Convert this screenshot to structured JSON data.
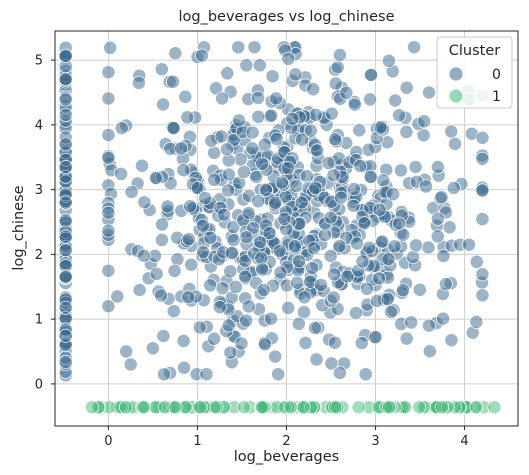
{
  "chart_data": {
    "type": "scatter",
    "title": "log_beverages vs log_chinese",
    "xlabel": "log_beverages",
    "ylabel": "log_chinese",
    "xlim": [
      -0.6,
      4.6
    ],
    "ylim": [
      -0.65,
      5.45
    ],
    "xticks": [
      0,
      1,
      2,
      3,
      4
    ],
    "yticks": [
      0,
      1,
      2,
      3,
      4,
      5
    ],
    "grid": true,
    "legend": {
      "title": "Cluster",
      "placement": "top-right"
    },
    "series": [
      {
        "name": "0",
        "color": "#3b6a8f",
        "groups": [
          {
            "shape": "vertical-strip",
            "x": -0.48,
            "y_min": 0.1,
            "y_max": 5.2,
            "count": 120
          },
          {
            "shape": "cloud",
            "x_min": 0.0,
            "x_max": 4.2,
            "y_min": 0.15,
            "y_max": 5.2,
            "count": 700
          }
        ],
        "points": [
          [
            0.02,
            5.19
          ],
          [
            1.0,
            5.05
          ],
          [
            1.05,
            5.07
          ],
          [
            2.6,
            5.08
          ],
          [
            2.02,
            5.02
          ],
          [
            3.15,
            4.99
          ],
          [
            0.6,
            4.86
          ],
          [
            1.55,
            4.92
          ],
          [
            1.7,
            4.92
          ],
          [
            2.1,
            4.78
          ],
          [
            2.95,
            4.77
          ],
          [
            2.3,
            4.55
          ],
          [
            3.6,
            4.5
          ],
          [
            4.2,
            4.45
          ],
          [
            0.2,
            3.99
          ],
          [
            0.15,
            3.95
          ],
          [
            4.2,
            2.99
          ],
          [
            3.95,
            2.15
          ],
          [
            4.05,
            2.15
          ],
          [
            3.7,
            2.55
          ],
          [
            3.6,
            0.9
          ],
          [
            3.0,
            0.72
          ],
          [
            2.6,
            0.17
          ],
          [
            1.1,
            0.15
          ],
          [
            0.2,
            0.5
          ],
          [
            0.25,
            0.3
          ],
          [
            0.85,
            0.25
          ],
          [
            3.4,
            0.95
          ],
          [
            3.35,
            0.7
          ],
          [
            3.85,
            3.9
          ],
          [
            3.7,
            3.35
          ],
          [
            3.45,
            3.35
          ],
          [
            0.35,
            1.45
          ],
          [
            0.0,
            1.2
          ],
          [
            0.1,
            1.35
          ],
          [
            0.5,
            0.55
          ]
        ]
      },
      {
        "name": "1",
        "color": "#47b97c",
        "groups": [
          {
            "shape": "horizontal-strip",
            "y": -0.36,
            "x_min": -0.2,
            "x_max": 4.35,
            "count": 110
          }
        ],
        "points": [
          [
            3.95,
            4.38
          ],
          [
            4.05,
            4.4
          ]
        ]
      }
    ]
  }
}
